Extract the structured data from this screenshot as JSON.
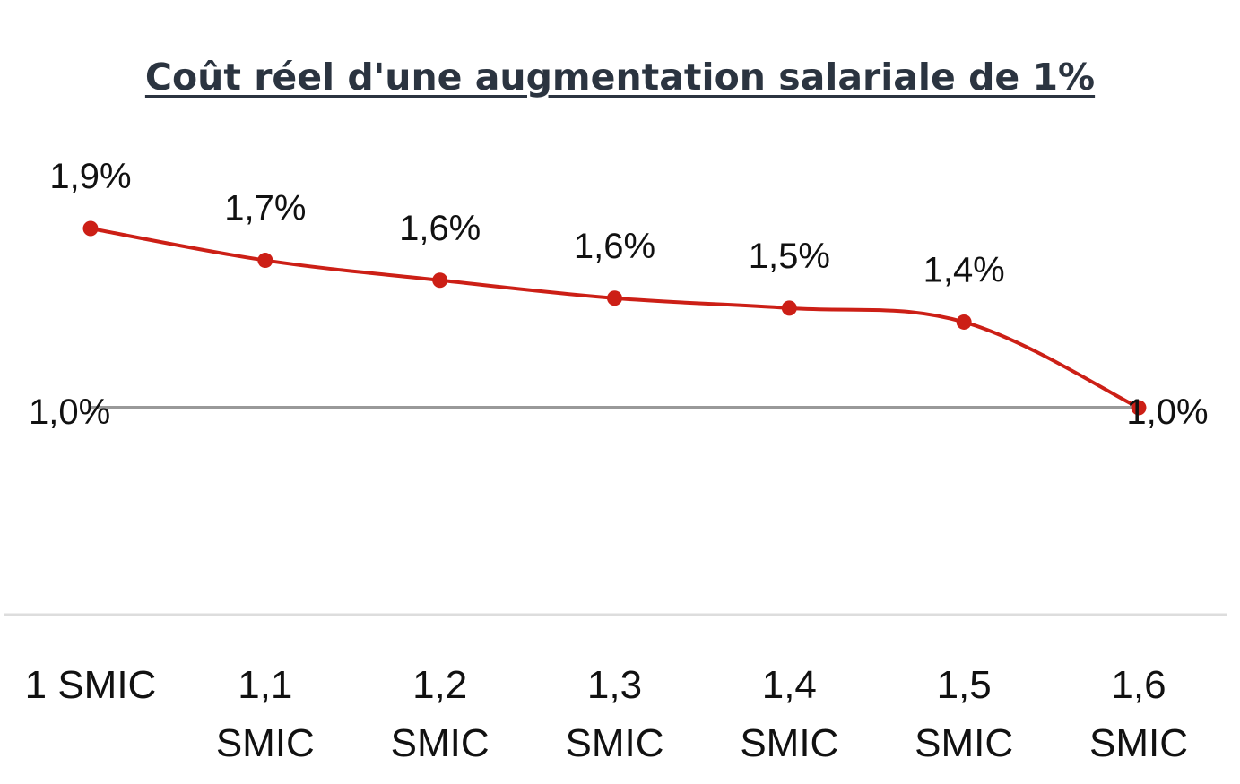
{
  "chart_data": {
    "type": "line",
    "title": "Coût réel d'une augmentation salariale de 1%",
    "xlabel": "",
    "ylabel": "",
    "categories": [
      [
        "1 SMIC"
      ],
      [
        "1,1",
        "SMIC"
      ],
      [
        "1,2",
        "SMIC"
      ],
      [
        "1,3",
        "SMIC"
      ],
      [
        "1,4",
        "SMIC"
      ],
      [
        "1,5",
        "SMIC"
      ],
      [
        "1,6",
        "SMIC"
      ]
    ],
    "series": [
      {
        "color": "#cc1f16",
        "values": [
          1.9,
          1.74,
          1.64,
          1.55,
          1.5,
          1.43,
          1.0
        ],
        "labels": [
          "1,9%",
          "1,7%",
          "1,6%",
          "1,6%",
          "1,5%",
          "1,4%",
          "1,0%"
        ]
      }
    ],
    "reference_line": {
      "value": 1.0,
      "label": "1,0%",
      "color": "#999999"
    },
    "ylim": [
      0.0,
      2.2
    ],
    "grid": false,
    "legend": "none",
    "axis_color": "#dddddd"
  }
}
